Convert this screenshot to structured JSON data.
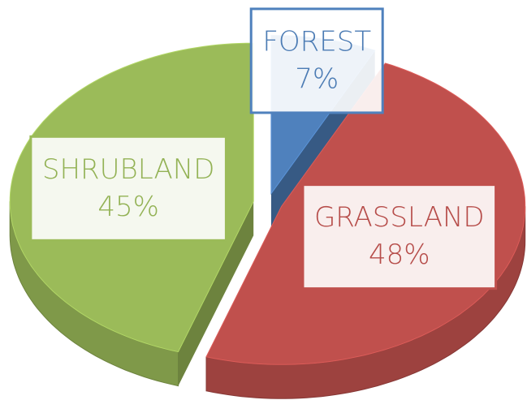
{
  "chart_data": {
    "type": "pie",
    "categories": [
      "FOREST",
      "GRASSLAND",
      "SHRUBLAND"
    ],
    "values": [
      7,
      48,
      45
    ],
    "value_labels": [
      "7%",
      "48%",
      "45%"
    ],
    "colors": [
      "#4f81bd",
      "#c0504d",
      "#9bbb59"
    ]
  }
}
